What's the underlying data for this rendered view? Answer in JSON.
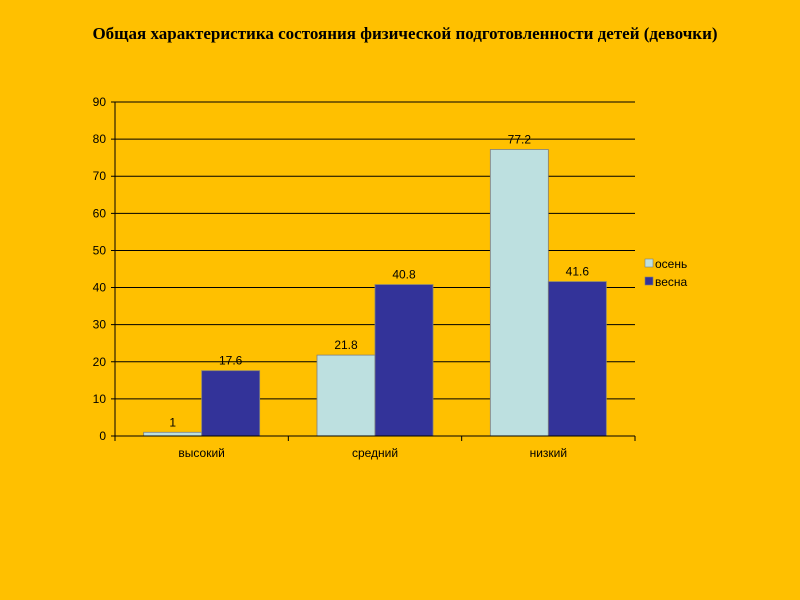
{
  "slide": {
    "title": "Общая характеристика состояния физической подготовленности детей (девочки)"
  },
  "chart_data": {
    "type": "bar",
    "title": "Общая характеристика состояния физической подготовленности детей (девочки)",
    "xlabel": "",
    "ylabel": "",
    "categories": [
      "высокий",
      "средний",
      "низкий"
    ],
    "series": [
      {
        "name": "осень",
        "values": [
          1,
          21.8,
          77.2
        ],
        "color": "#BDE0E0"
      },
      {
        "name": "весна",
        "values": [
          17.6,
          40.8,
          41.6
        ],
        "color": "#333399"
      }
    ],
    "ylim": [
      0,
      90
    ],
    "yticks": [
      0,
      10,
      20,
      30,
      40,
      50,
      60,
      70,
      80,
      90
    ],
    "grid": true,
    "legend_position": "right",
    "data_labels": [
      [
        "1",
        "21.8",
        "77.2"
      ],
      [
        "17.6",
        "40.8",
        "41.6"
      ]
    ],
    "colors": {
      "background": "#FFC000",
      "gridline": "#000000",
      "bar_outline": "#7F7F7F"
    }
  }
}
